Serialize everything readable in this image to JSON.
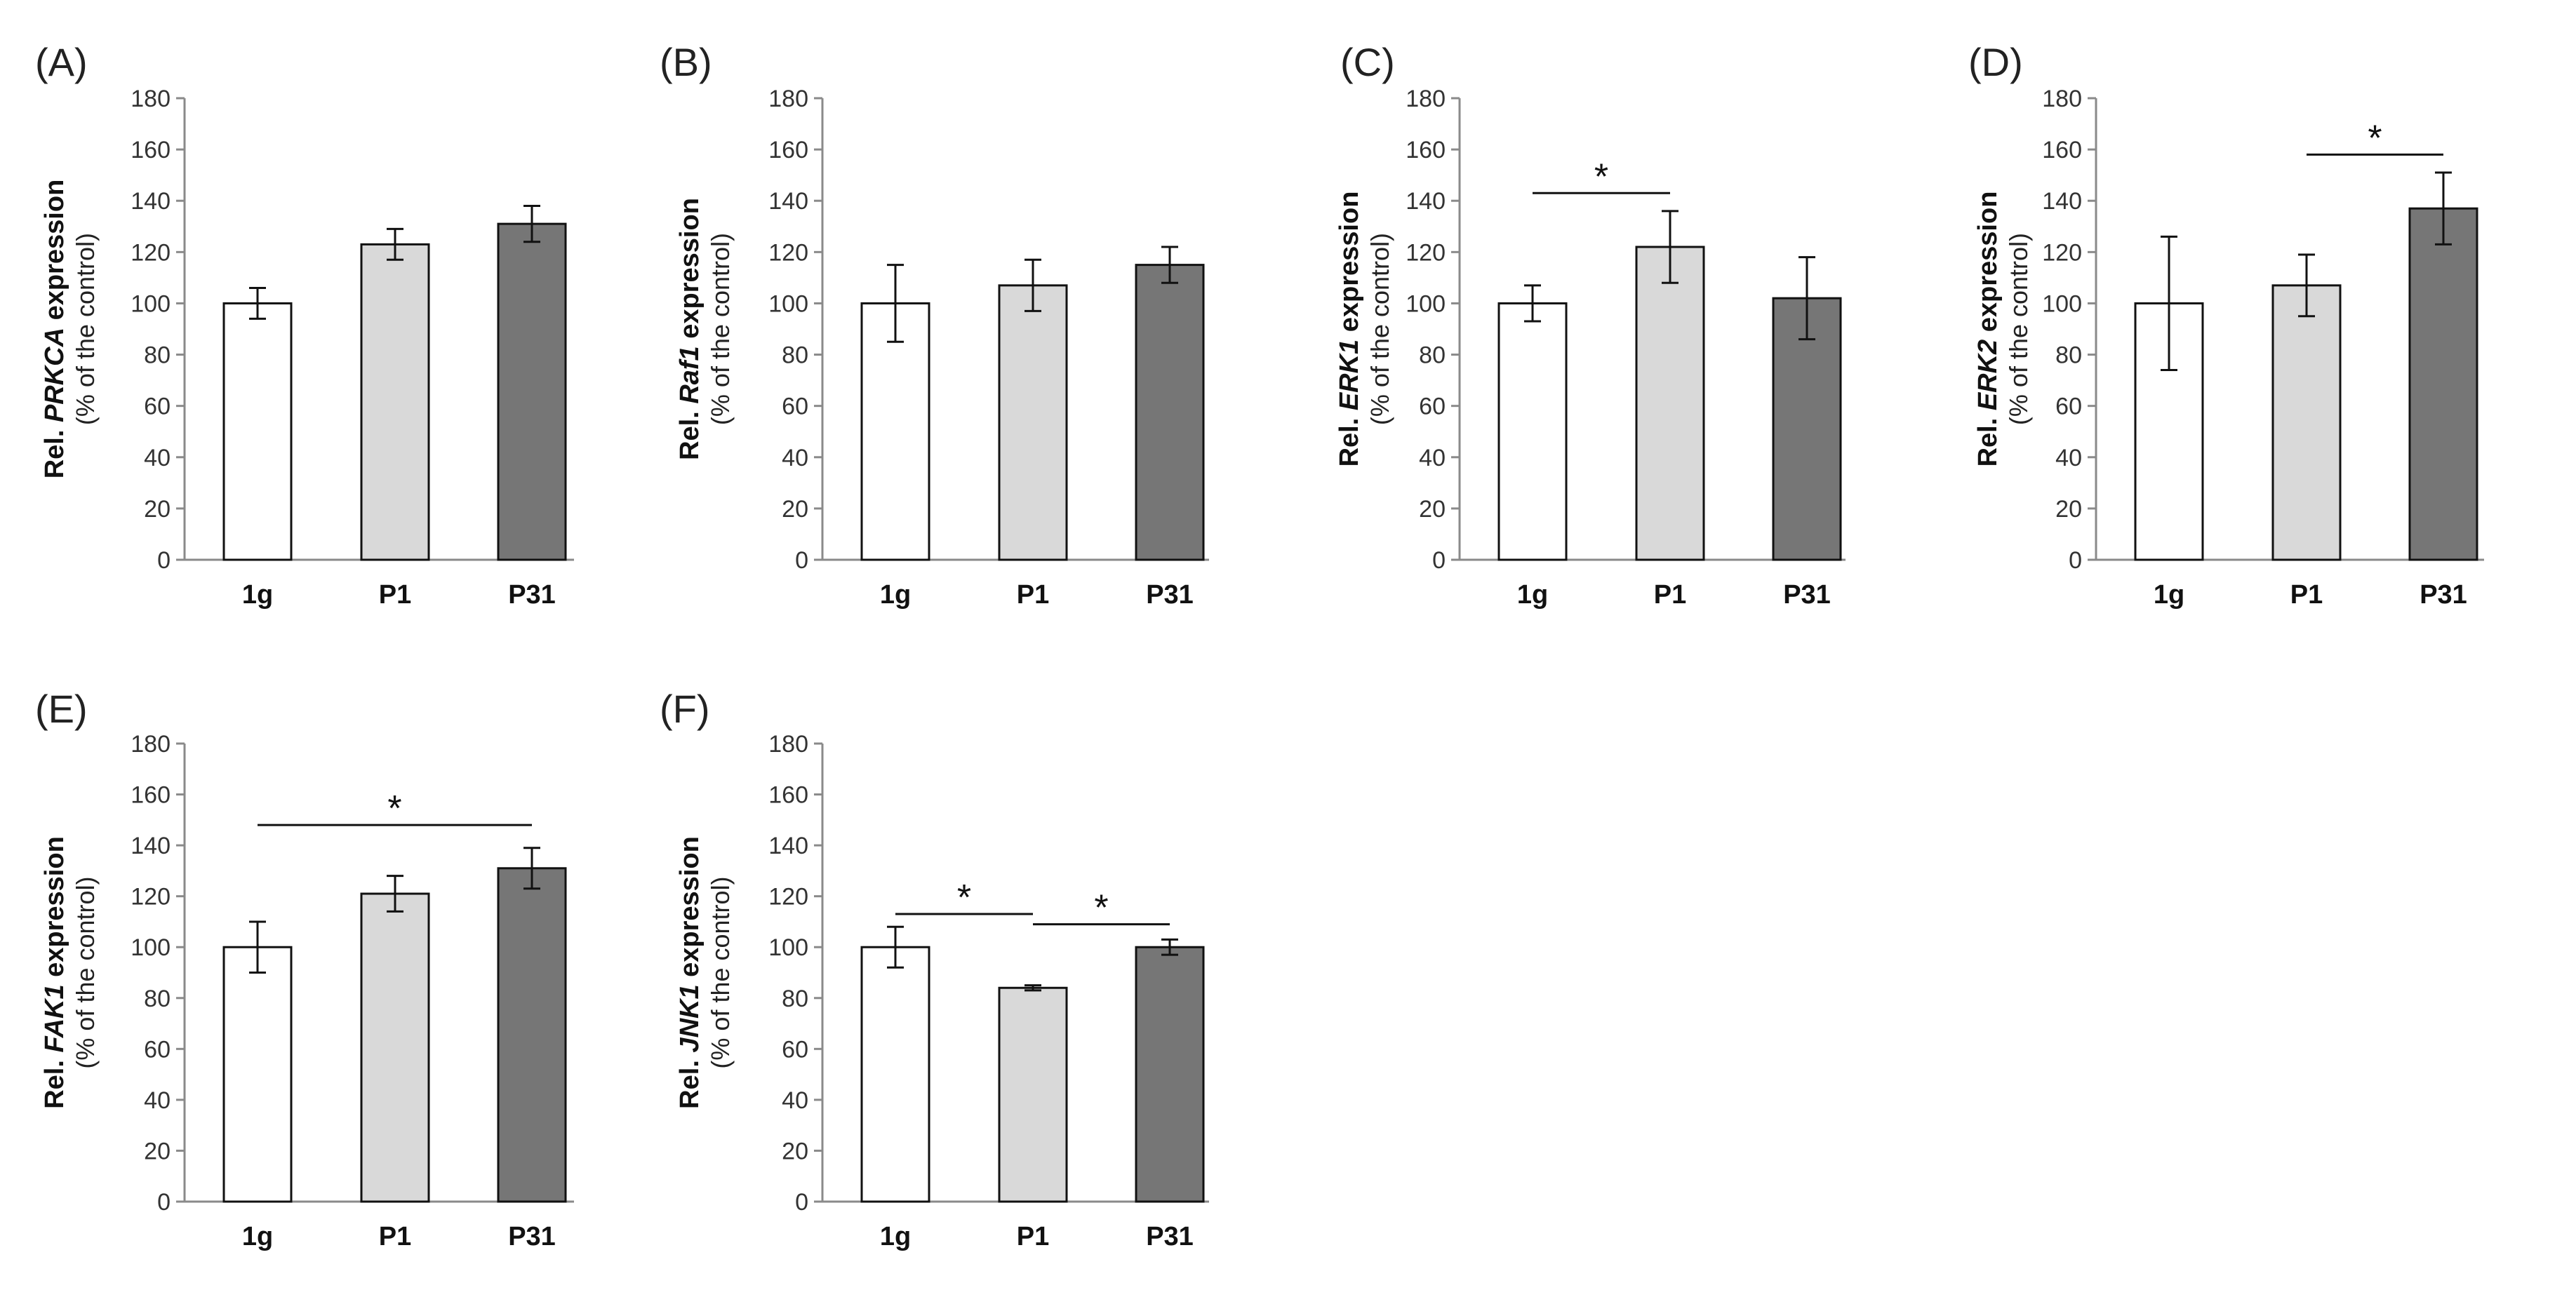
{
  "colors": {
    "1g": "#ffffff",
    "P1": "#d9d9d9",
    "P31": "#767676",
    "stroke": "#111111",
    "axis": "#8a8a8a"
  },
  "chart_data": [
    {
      "type": "bar",
      "panel": "(A)",
      "gene": "PRKCA",
      "ylabel_prefix": "Rel. ",
      "ylabel_suffix": " expression",
      "ylabel_sub": "(% of the control)",
      "categories": [
        "1g",
        "P1",
        "P31"
      ],
      "values": [
        100,
        123,
        131
      ],
      "errors": [
        6,
        6,
        7
      ],
      "ylim": [
        0,
        180
      ],
      "yticks": [
        0,
        20,
        40,
        60,
        80,
        100,
        120,
        140,
        160,
        180
      ],
      "significance": []
    },
    {
      "type": "bar",
      "panel": "(B)",
      "gene": "Raf1",
      "ylabel_prefix": "Rel. ",
      "ylabel_suffix": " expression",
      "ylabel_sub": "(% of the control)",
      "categories": [
        "1g",
        "P1",
        "P31"
      ],
      "values": [
        100,
        107,
        115
      ],
      "errors": [
        15,
        10,
        7
      ],
      "ylim": [
        0,
        180
      ],
      "yticks": [
        0,
        20,
        40,
        60,
        80,
        100,
        120,
        140,
        160,
        180
      ],
      "significance": []
    },
    {
      "type": "bar",
      "panel": "(C)",
      "gene": "ERK1",
      "ylabel_prefix": "Rel. ",
      "ylabel_suffix": " expression",
      "ylabel_sub": "(% of the control)",
      "categories": [
        "1g",
        "P1",
        "P31"
      ],
      "values": [
        100,
        122,
        102
      ],
      "errors": [
        7,
        14,
        16
      ],
      "ylim": [
        0,
        180
      ],
      "yticks": [
        0,
        20,
        40,
        60,
        80,
        100,
        120,
        140,
        160,
        180
      ],
      "significance": [
        {
          "from": 0,
          "to": 1,
          "y": 143,
          "label": "*"
        }
      ]
    },
    {
      "type": "bar",
      "panel": "(D)",
      "gene": "ERK2",
      "ylabel_prefix": "Rel. ",
      "ylabel_suffix": " expression",
      "ylabel_sub": "(% of the control)",
      "categories": [
        "1g",
        "P1",
        "P31"
      ],
      "values": [
        100,
        107,
        137
      ],
      "errors": [
        26,
        12,
        14
      ],
      "ylim": [
        0,
        180
      ],
      "yticks": [
        0,
        20,
        40,
        60,
        80,
        100,
        120,
        140,
        160,
        180
      ],
      "significance": [
        {
          "from": 1,
          "to": 2,
          "y": 158,
          "label": "*"
        }
      ]
    },
    {
      "type": "bar",
      "panel": "(E)",
      "gene": "FAK1",
      "ylabel_prefix": "Rel. ",
      "ylabel_suffix": " expression",
      "ylabel_sub": "(% of the control)",
      "categories": [
        "1g",
        "P1",
        "P31"
      ],
      "values": [
        100,
        121,
        131
      ],
      "errors": [
        10,
        7,
        8
      ],
      "ylim": [
        0,
        180
      ],
      "yticks": [
        0,
        20,
        40,
        60,
        80,
        100,
        120,
        140,
        160,
        180
      ],
      "significance": [
        {
          "from": 0,
          "to": 2,
          "y": 148,
          "label": "*"
        }
      ]
    },
    {
      "type": "bar",
      "panel": "(F)",
      "gene": "JNK1",
      "ylabel_prefix": "Rel. ",
      "ylabel_suffix": " expression",
      "ylabel_sub": "(% of the control)",
      "categories": [
        "1g",
        "P1",
        "P31"
      ],
      "values": [
        100,
        84,
        100
      ],
      "errors": [
        8,
        1,
        3
      ],
      "ylim": [
        0,
        180
      ],
      "yticks": [
        0,
        20,
        40,
        60,
        80,
        100,
        120,
        140,
        160,
        180
      ],
      "significance": [
        {
          "from": 0,
          "to": 1,
          "y": 113,
          "label": "*"
        },
        {
          "from": 1,
          "to": 2,
          "y": 109,
          "label": "*"
        }
      ]
    }
  ]
}
